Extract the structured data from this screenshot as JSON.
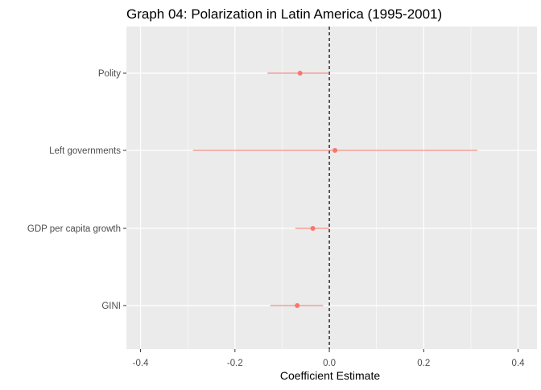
{
  "chart_data": {
    "type": "coefficient-plot",
    "title": "Graph 04: Polarization in Latin America (1995-2001)",
    "xlabel": "Coefficient Estimate",
    "ylabel": "",
    "xlim": [
      -0.43,
      0.44
    ],
    "x_ticks": [
      -0.4,
      -0.2,
      0.0,
      0.2,
      0.4
    ],
    "x_tick_labels": [
      "-0.4",
      "-0.2",
      "0.0",
      "0.2",
      "0.4"
    ],
    "reference_line": 0,
    "grid": true,
    "point_color": "#F8766D",
    "panel_color": "#EBEBEB",
    "categories": [
      "Polity",
      "Left governments",
      "GDP per capita growth",
      "GINI"
    ],
    "estimates": [
      {
        "label": "Polity",
        "estimate": -0.062,
        "lower": -0.131,
        "upper": 0.0
      },
      {
        "label": "Left governments",
        "estimate": 0.012,
        "lower": -0.289,
        "upper": 0.314
      },
      {
        "label": "GDP per capita growth",
        "estimate": -0.035,
        "lower": -0.072,
        "upper": 0.0
      },
      {
        "label": "GINI",
        "estimate": -0.068,
        "lower": -0.125,
        "upper": -0.013
      }
    ]
  }
}
